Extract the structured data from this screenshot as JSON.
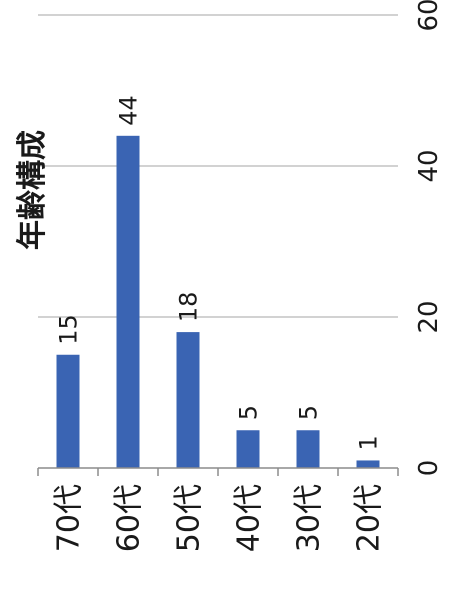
{
  "chart_data": {
    "type": "bar",
    "title": "年齢構成",
    "categories": [
      "70代",
      "60代",
      "50代",
      "40代",
      "30代",
      "20代"
    ],
    "values": [
      15,
      44,
      18,
      5,
      5,
      1
    ],
    "ylim": [
      0,
      60
    ],
    "yticks": [
      "0",
      "20",
      "40",
      "60"
    ],
    "data_labels": [
      "15",
      "44",
      "18",
      "5",
      "5",
      "1"
    ],
    "grid": true,
    "legend": "none",
    "orientation": "rotated",
    "bar_color": "#3a64b3",
    "grid_color": "#a6a6a6",
    "axis_color": "#8c8c8c"
  }
}
